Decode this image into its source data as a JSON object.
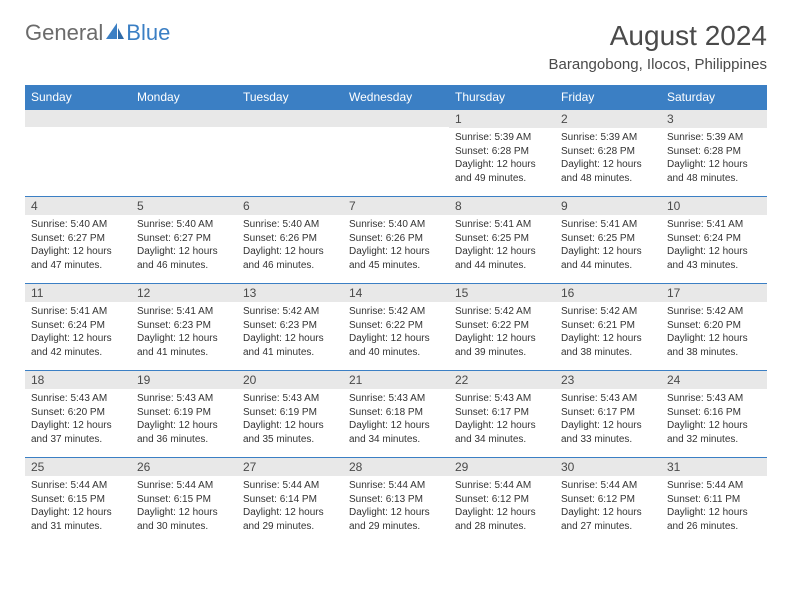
{
  "logo": {
    "text1": "General",
    "text2": "Blue"
  },
  "title": "August 2024",
  "subtitle": "Barangobong, Ilocos, Philippines",
  "colors": {
    "header_bg": "#3b7fc4",
    "header_text": "#ffffff",
    "daynum_bg": "#e8e8e8",
    "border": "#3b7fc4",
    "text": "#333333",
    "title_color": "#4a4a4a"
  },
  "weekdays": [
    "Sunday",
    "Monday",
    "Tuesday",
    "Wednesday",
    "Thursday",
    "Friday",
    "Saturday"
  ],
  "weeks": [
    [
      null,
      null,
      null,
      null,
      {
        "n": "1",
        "l1": "Sunrise: 5:39 AM",
        "l2": "Sunset: 6:28 PM",
        "l3": "Daylight: 12 hours",
        "l4": "and 49 minutes."
      },
      {
        "n": "2",
        "l1": "Sunrise: 5:39 AM",
        "l2": "Sunset: 6:28 PM",
        "l3": "Daylight: 12 hours",
        "l4": "and 48 minutes."
      },
      {
        "n": "3",
        "l1": "Sunrise: 5:39 AM",
        "l2": "Sunset: 6:28 PM",
        "l3": "Daylight: 12 hours",
        "l4": "and 48 minutes."
      }
    ],
    [
      {
        "n": "4",
        "l1": "Sunrise: 5:40 AM",
        "l2": "Sunset: 6:27 PM",
        "l3": "Daylight: 12 hours",
        "l4": "and 47 minutes."
      },
      {
        "n": "5",
        "l1": "Sunrise: 5:40 AM",
        "l2": "Sunset: 6:27 PM",
        "l3": "Daylight: 12 hours",
        "l4": "and 46 minutes."
      },
      {
        "n": "6",
        "l1": "Sunrise: 5:40 AM",
        "l2": "Sunset: 6:26 PM",
        "l3": "Daylight: 12 hours",
        "l4": "and 46 minutes."
      },
      {
        "n": "7",
        "l1": "Sunrise: 5:40 AM",
        "l2": "Sunset: 6:26 PM",
        "l3": "Daylight: 12 hours",
        "l4": "and 45 minutes."
      },
      {
        "n": "8",
        "l1": "Sunrise: 5:41 AM",
        "l2": "Sunset: 6:25 PM",
        "l3": "Daylight: 12 hours",
        "l4": "and 44 minutes."
      },
      {
        "n": "9",
        "l1": "Sunrise: 5:41 AM",
        "l2": "Sunset: 6:25 PM",
        "l3": "Daylight: 12 hours",
        "l4": "and 44 minutes."
      },
      {
        "n": "10",
        "l1": "Sunrise: 5:41 AM",
        "l2": "Sunset: 6:24 PM",
        "l3": "Daylight: 12 hours",
        "l4": "and 43 minutes."
      }
    ],
    [
      {
        "n": "11",
        "l1": "Sunrise: 5:41 AM",
        "l2": "Sunset: 6:24 PM",
        "l3": "Daylight: 12 hours",
        "l4": "and 42 minutes."
      },
      {
        "n": "12",
        "l1": "Sunrise: 5:41 AM",
        "l2": "Sunset: 6:23 PM",
        "l3": "Daylight: 12 hours",
        "l4": "and 41 minutes."
      },
      {
        "n": "13",
        "l1": "Sunrise: 5:42 AM",
        "l2": "Sunset: 6:23 PM",
        "l3": "Daylight: 12 hours",
        "l4": "and 41 minutes."
      },
      {
        "n": "14",
        "l1": "Sunrise: 5:42 AM",
        "l2": "Sunset: 6:22 PM",
        "l3": "Daylight: 12 hours",
        "l4": "and 40 minutes."
      },
      {
        "n": "15",
        "l1": "Sunrise: 5:42 AM",
        "l2": "Sunset: 6:22 PM",
        "l3": "Daylight: 12 hours",
        "l4": "and 39 minutes."
      },
      {
        "n": "16",
        "l1": "Sunrise: 5:42 AM",
        "l2": "Sunset: 6:21 PM",
        "l3": "Daylight: 12 hours",
        "l4": "and 38 minutes."
      },
      {
        "n": "17",
        "l1": "Sunrise: 5:42 AM",
        "l2": "Sunset: 6:20 PM",
        "l3": "Daylight: 12 hours",
        "l4": "and 38 minutes."
      }
    ],
    [
      {
        "n": "18",
        "l1": "Sunrise: 5:43 AM",
        "l2": "Sunset: 6:20 PM",
        "l3": "Daylight: 12 hours",
        "l4": "and 37 minutes."
      },
      {
        "n": "19",
        "l1": "Sunrise: 5:43 AM",
        "l2": "Sunset: 6:19 PM",
        "l3": "Daylight: 12 hours",
        "l4": "and 36 minutes."
      },
      {
        "n": "20",
        "l1": "Sunrise: 5:43 AM",
        "l2": "Sunset: 6:19 PM",
        "l3": "Daylight: 12 hours",
        "l4": "and 35 minutes."
      },
      {
        "n": "21",
        "l1": "Sunrise: 5:43 AM",
        "l2": "Sunset: 6:18 PM",
        "l3": "Daylight: 12 hours",
        "l4": "and 34 minutes."
      },
      {
        "n": "22",
        "l1": "Sunrise: 5:43 AM",
        "l2": "Sunset: 6:17 PM",
        "l3": "Daylight: 12 hours",
        "l4": "and 34 minutes."
      },
      {
        "n": "23",
        "l1": "Sunrise: 5:43 AM",
        "l2": "Sunset: 6:17 PM",
        "l3": "Daylight: 12 hours",
        "l4": "and 33 minutes."
      },
      {
        "n": "24",
        "l1": "Sunrise: 5:43 AM",
        "l2": "Sunset: 6:16 PM",
        "l3": "Daylight: 12 hours",
        "l4": "and 32 minutes."
      }
    ],
    [
      {
        "n": "25",
        "l1": "Sunrise: 5:44 AM",
        "l2": "Sunset: 6:15 PM",
        "l3": "Daylight: 12 hours",
        "l4": "and 31 minutes."
      },
      {
        "n": "26",
        "l1": "Sunrise: 5:44 AM",
        "l2": "Sunset: 6:15 PM",
        "l3": "Daylight: 12 hours",
        "l4": "and 30 minutes."
      },
      {
        "n": "27",
        "l1": "Sunrise: 5:44 AM",
        "l2": "Sunset: 6:14 PM",
        "l3": "Daylight: 12 hours",
        "l4": "and 29 minutes."
      },
      {
        "n": "28",
        "l1": "Sunrise: 5:44 AM",
        "l2": "Sunset: 6:13 PM",
        "l3": "Daylight: 12 hours",
        "l4": "and 29 minutes."
      },
      {
        "n": "29",
        "l1": "Sunrise: 5:44 AM",
        "l2": "Sunset: 6:12 PM",
        "l3": "Daylight: 12 hours",
        "l4": "and 28 minutes."
      },
      {
        "n": "30",
        "l1": "Sunrise: 5:44 AM",
        "l2": "Sunset: 6:12 PM",
        "l3": "Daylight: 12 hours",
        "l4": "and 27 minutes."
      },
      {
        "n": "31",
        "l1": "Sunrise: 5:44 AM",
        "l2": "Sunset: 6:11 PM",
        "l3": "Daylight: 12 hours",
        "l4": "and 26 minutes."
      }
    ]
  ]
}
